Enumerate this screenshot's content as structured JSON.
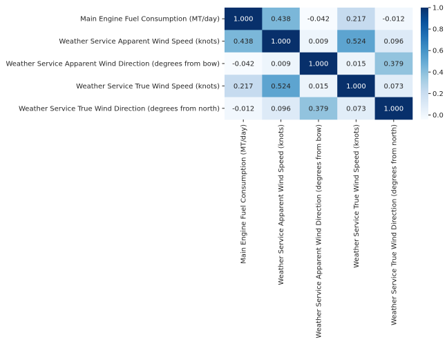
{
  "chart_data": {
    "type": "heatmap",
    "title": "",
    "row_labels": [
      "Main Engine Fuel Consumption (MT/day)",
      "Weather Service Apparent Wind Speed (knots)",
      "Weather Service Apparent Wind Direction (degrees from bow)",
      "Weather Service True Wind Speed (knots)",
      "Weather Service True Wind Direction (degrees from north)"
    ],
    "col_labels": [
      "Main Engine Fuel Consumption (MT/day)",
      "Weather Service Apparent Wind Speed (knots)",
      "Weather Service Apparent Wind Direction (degrees from bow)",
      "Weather Service True Wind Speed (knots)",
      "Weather Service True Wind Direction (degrees from north)"
    ],
    "values": [
      [
        1.0,
        0.438,
        -0.042,
        0.217,
        -0.012
      ],
      [
        0.438,
        1.0,
        0.009,
        0.524,
        0.096
      ],
      [
        -0.042,
        0.009,
        1.0,
        0.015,
        0.379
      ],
      [
        0.217,
        0.524,
        0.015,
        1.0,
        0.073
      ],
      [
        -0.012,
        0.096,
        0.379,
        0.073,
        1.0
      ]
    ],
    "value_labels": [
      [
        "1.000",
        "0.438",
        "-0.042",
        "0.217",
        "-0.012"
      ],
      [
        "0.438",
        "1.000",
        "0.009",
        "0.524",
        "0.096"
      ],
      [
        "-0.042",
        "0.009",
        "1.000",
        "0.015",
        "0.379"
      ],
      [
        "0.217",
        "0.524",
        "0.015",
        "1.000",
        "0.073"
      ],
      [
        "-0.012",
        "0.096",
        "0.379",
        "0.073",
        "1.000"
      ]
    ],
    "colormap": "Blues",
    "colorbar": {
      "range": [
        -0.042,
        1.0
      ],
      "ticks": [
        0.0,
        0.2,
        0.4,
        0.6,
        0.8,
        1.0
      ],
      "tick_labels": [
        "0.0",
        "0.2",
        "0.4",
        "0.6",
        "0.8",
        "1.0"
      ]
    },
    "grid": false
  }
}
